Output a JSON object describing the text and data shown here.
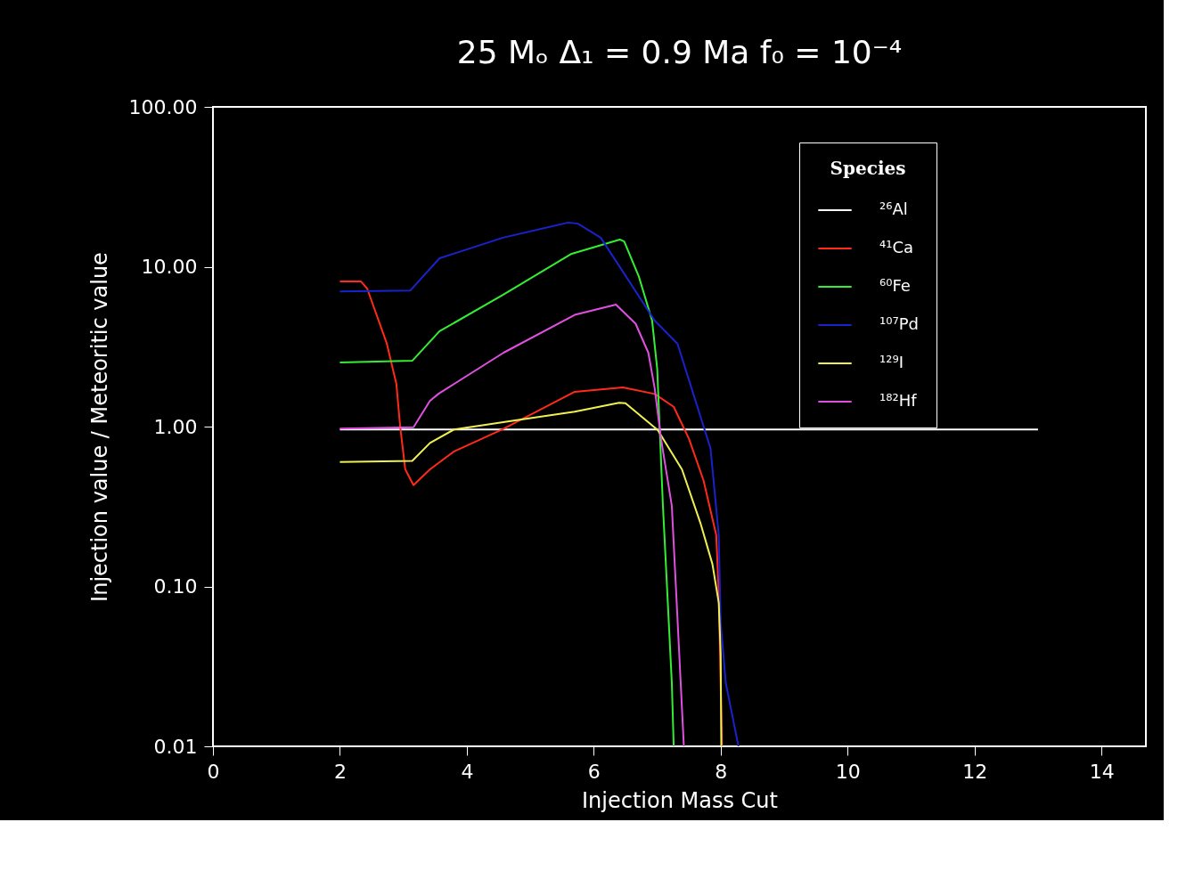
{
  "chart_data": {
    "type": "line",
    "title": "25 Mₒ      Δ₁ = 0.9 Ma      f₀ = 10⁻⁴",
    "xlabel": "Injection Mass Cut",
    "ylabel": "Injection value / Meteoritic value",
    "legend_title": "Species",
    "legend": "top right",
    "log": "y",
    "grid": false,
    "marker": "none",
    "line_style": "solid",
    "xlim": [
      0,
      14.7
    ],
    "xticks": [
      0,
      2,
      4,
      6,
      8,
      10,
      12,
      14
    ],
    "ylim": [
      0.01,
      100
    ],
    "yticks": [
      {
        "value": 0.01,
        "label": "0.01"
      },
      {
        "value": 0.1,
        "label": "0.10"
      },
      {
        "value": 1,
        "label": "1.00"
      },
      {
        "value": 10,
        "label": "10.00"
      },
      {
        "value": 100,
        "label": "100.00"
      }
    ],
    "series": [
      {
        "name": "²⁶Al",
        "color": "#ffffff",
        "x": [
          2.0,
          13.0
        ],
        "values": [
          0.96,
          0.96
        ]
      },
      {
        "name": "⁴¹Ca",
        "color": "#ff2a1a",
        "x": [
          2.0,
          2.33,
          2.43,
          2.74,
          2.89,
          2.95,
          3.03,
          3.16,
          3.42,
          3.8,
          4.56,
          5.7,
          6.46,
          6.96,
          7.26,
          7.5,
          7.73,
          7.93,
          7.97,
          8.02
        ],
        "values": [
          8.1,
          8.1,
          7.3,
          3.3,
          1.85,
          1.0,
          0.54,
          0.43,
          0.54,
          0.7,
          0.96,
          1.65,
          1.76,
          1.6,
          1.33,
          0.84,
          0.46,
          0.21,
          0.09,
          0.01
        ]
      },
      {
        "name": "⁶⁰Fe",
        "color": "#33ee33",
        "x": [
          2.0,
          3.14,
          3.57,
          4.58,
          5.64,
          6.41,
          6.48,
          6.71,
          6.92,
          7.0,
          7.04,
          7.09,
          7.16,
          7.23,
          7.26
        ],
        "values": [
          2.52,
          2.58,
          3.95,
          6.7,
          12.0,
          14.8,
          14.4,
          8.7,
          4.6,
          2.3,
          0.95,
          0.32,
          0.09,
          0.025,
          0.01
        ]
      },
      {
        "name": "¹⁰⁷Pd",
        "color": "#1a22cc",
        "x": [
          2.0,
          3.11,
          3.57,
          4.57,
          5.6,
          5.75,
          6.11,
          6.46,
          6.96,
          7.32,
          7.84,
          7.97,
          8.0,
          8.08,
          8.28
        ],
        "values": [
          7.0,
          7.1,
          11.3,
          15.2,
          18.9,
          18.6,
          15.2,
          9.3,
          4.6,
          3.3,
          0.73,
          0.21,
          0.059,
          0.025,
          0.01
        ]
      },
      {
        "name": "¹²⁹I",
        "color": "#f0f050",
        "x": [
          2.0,
          3.14,
          3.42,
          3.8,
          4.74,
          5.7,
          6.4,
          6.5,
          7.01,
          7.39,
          7.68,
          7.87,
          7.97,
          8.0,
          8.01
        ],
        "values": [
          0.6,
          0.61,
          0.79,
          0.96,
          1.09,
          1.24,
          1.41,
          1.4,
          0.95,
          0.54,
          0.25,
          0.138,
          0.079,
          0.038,
          0.01
        ]
      },
      {
        "name": "¹⁸²Hf",
        "color": "#e050e0",
        "x": [
          2.0,
          3.16,
          3.42,
          3.56,
          4.58,
          5.7,
          6.35,
          6.66,
          6.86,
          6.96,
          7.06,
          7.23,
          7.3,
          7.42
        ],
        "values": [
          0.97,
          0.99,
          1.45,
          1.61,
          2.9,
          5.0,
          5.8,
          4.4,
          2.9,
          1.74,
          0.84,
          0.32,
          0.09,
          0.01
        ]
      }
    ]
  }
}
